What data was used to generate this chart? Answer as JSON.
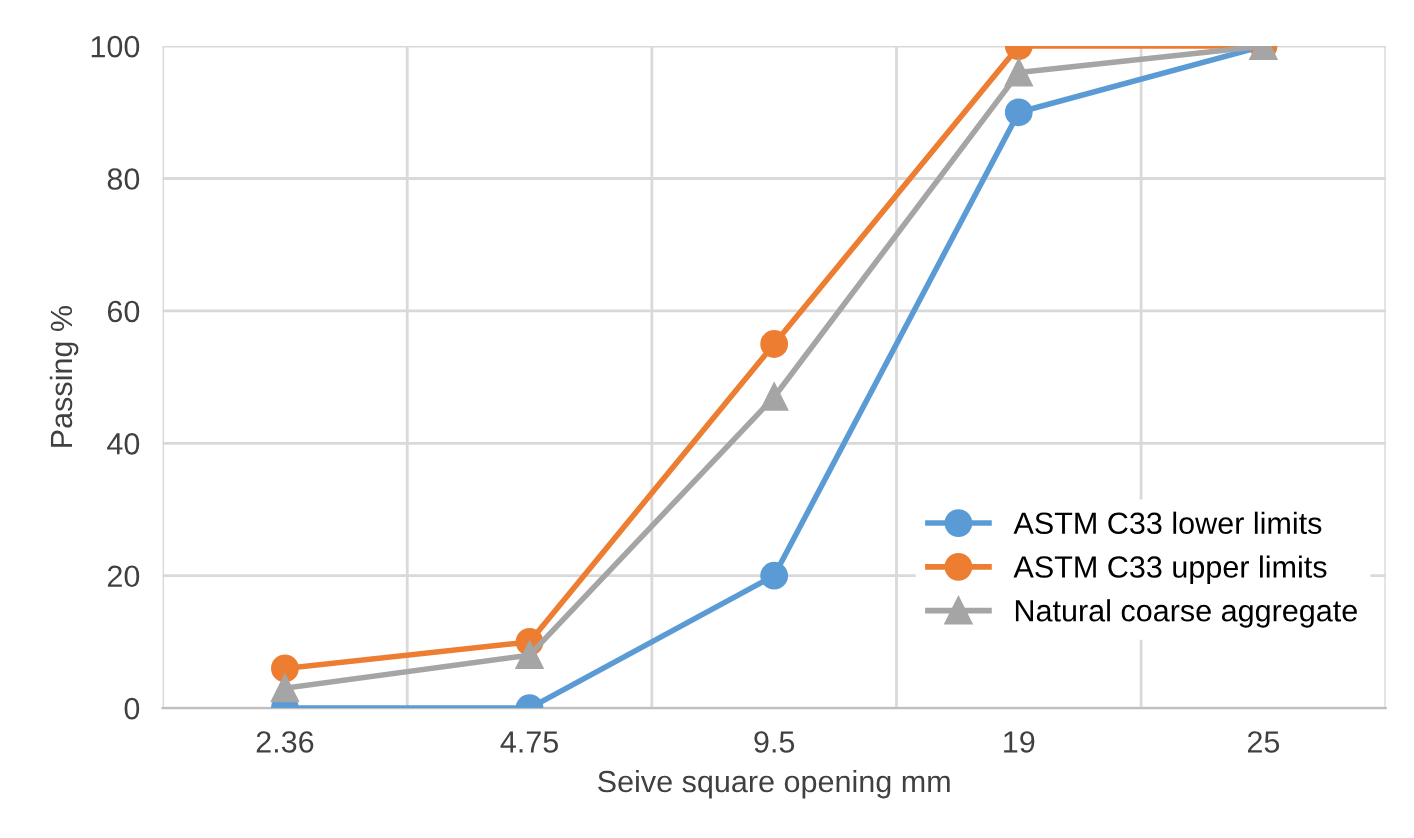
{
  "chart_data": {
    "type": "line",
    "xlabel": "Seive square opening mm",
    "ylabel": "Passing %",
    "categories": [
      "2.36",
      "4.75",
      "9.5",
      "19",
      "25"
    ],
    "series": [
      {
        "name": "ASTM C33 lower limits",
        "color": "#5b9bd5",
        "marker": "circle",
        "values": [
          0,
          0,
          20,
          90,
          100
        ]
      },
      {
        "name": "ASTM C33 upper limits",
        "color": "#ed7d31",
        "marker": "circle",
        "values": [
          6,
          10,
          55,
          100,
          100
        ]
      },
      {
        "name": "Natural coarse aggregate",
        "color": "#a5a5a5",
        "marker": "triangle",
        "values": [
          3,
          8,
          47,
          96,
          100
        ]
      }
    ],
    "ylim": [
      0,
      100
    ],
    "yticks": [
      0,
      20,
      40,
      60,
      80,
      100
    ],
    "grid": true,
    "legend": "bottom right"
  }
}
